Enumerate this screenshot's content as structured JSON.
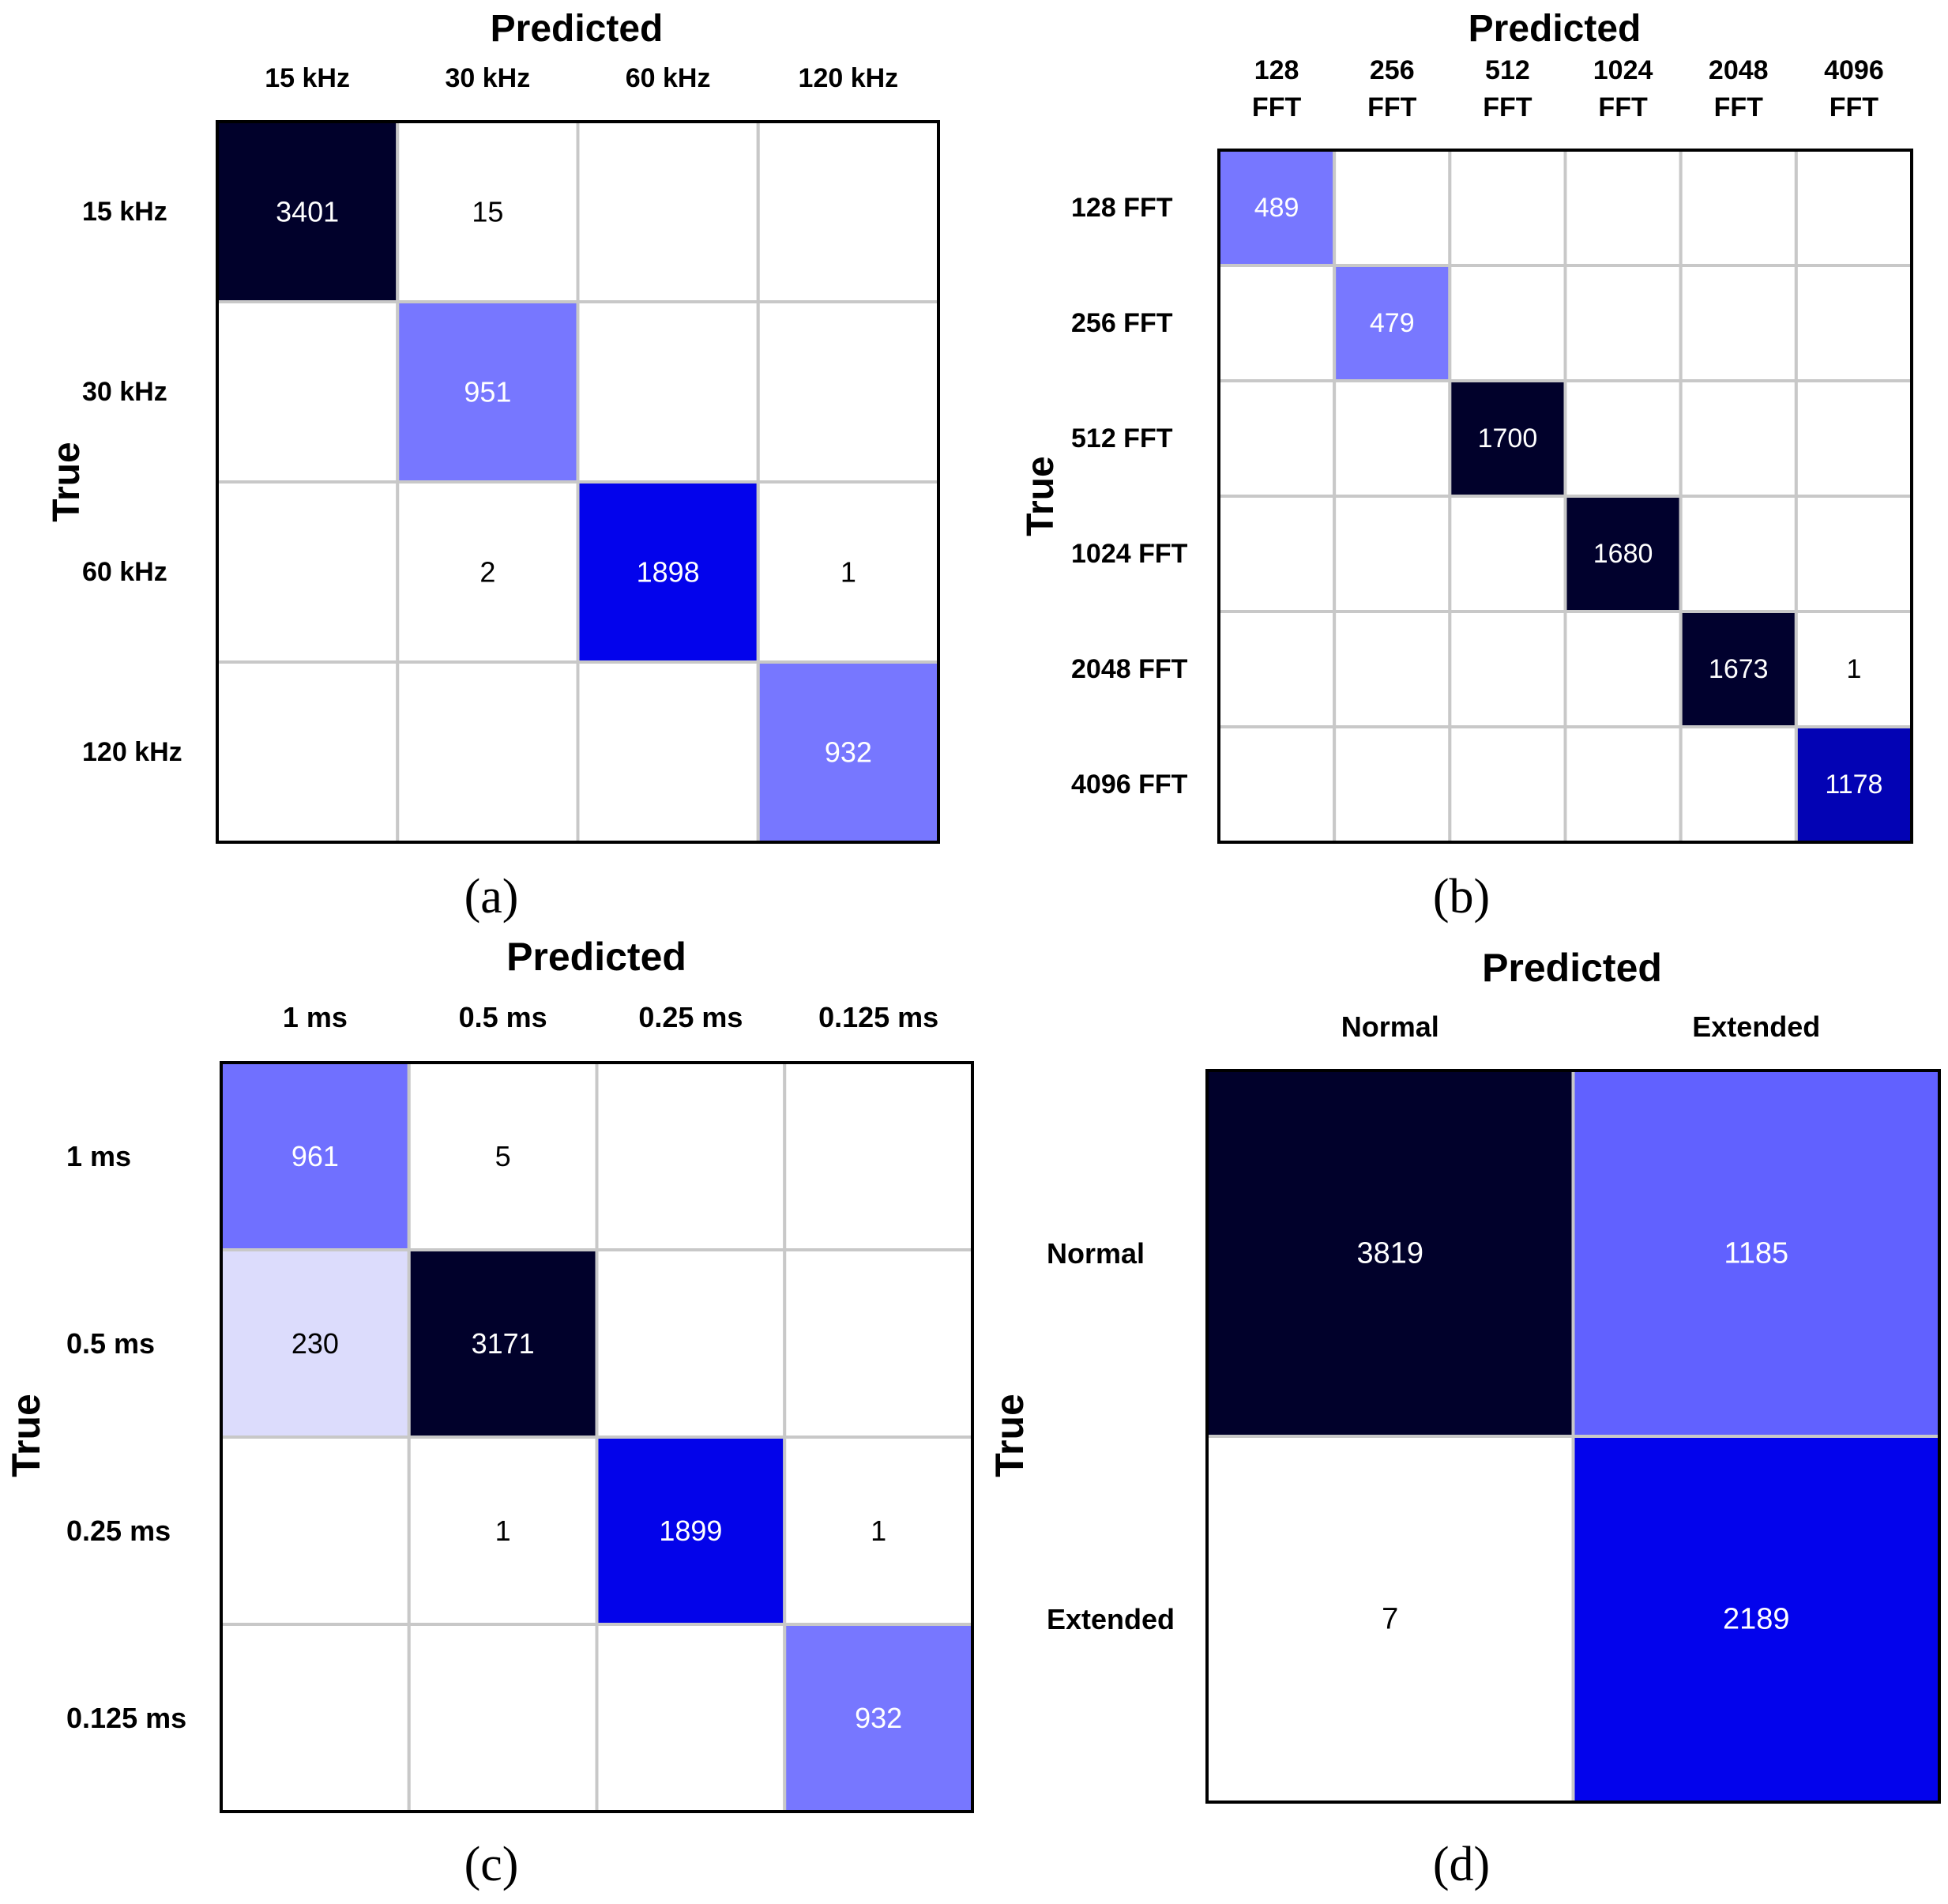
{
  "chart_data": [
    {
      "type": "heatmap",
      "panel": "a",
      "caption": "(a)",
      "xlabel": "Predicted",
      "ylabel": "True",
      "col_labels": [
        [
          "15 kHz"
        ],
        [
          "30 kHz"
        ],
        [
          "60 kHz"
        ],
        [
          "120 kHz"
        ]
      ],
      "row_labels": [
        "15 kHz",
        "30 kHz",
        "60 kHz",
        "120 kHz"
      ],
      "values": [
        [
          3401,
          15,
          null,
          null
        ],
        [
          null,
          951,
          null,
          null
        ],
        [
          null,
          2,
          1898,
          1
        ],
        [
          null,
          null,
          null,
          932
        ]
      ],
      "colors": [
        [
          "#01012b",
          "#ffffff",
          "#ffffff",
          "#ffffff"
        ],
        [
          "#ffffff",
          "#7777ff",
          "#ffffff",
          "#ffffff"
        ],
        [
          "#ffffff",
          "#ffffff",
          "#0303ec",
          "#ffffff"
        ],
        [
          "#ffffff",
          "#ffffff",
          "#ffffff",
          "#7777ff"
        ]
      ]
    },
    {
      "type": "heatmap",
      "panel": "b",
      "caption": "(b)",
      "xlabel": "Predicted",
      "ylabel": "True",
      "col_labels": [
        [
          "128",
          "FFT"
        ],
        [
          "256",
          "FFT"
        ],
        [
          "512",
          "FFT"
        ],
        [
          "1024",
          "FFT"
        ],
        [
          "2048",
          "FFT"
        ],
        [
          "4096",
          "FFT"
        ]
      ],
      "row_labels": [
        "128  FFT",
        "256  FFT",
        "512  FFT",
        "1024 FFT",
        "2048 FFT",
        "4096 FFT"
      ],
      "values": [
        [
          489,
          null,
          null,
          null,
          null,
          null
        ],
        [
          null,
          479,
          null,
          null,
          null,
          null
        ],
        [
          null,
          null,
          1700,
          null,
          null,
          null
        ],
        [
          null,
          null,
          null,
          1680,
          null,
          null
        ],
        [
          null,
          null,
          null,
          null,
          1673,
          1
        ],
        [
          null,
          null,
          null,
          null,
          null,
          1178
        ]
      ],
      "colors": [
        [
          "#7777ff",
          "#ffffff",
          "#ffffff",
          "#ffffff",
          "#ffffff",
          "#ffffff"
        ],
        [
          "#ffffff",
          "#7878ff",
          "#ffffff",
          "#ffffff",
          "#ffffff",
          "#ffffff"
        ],
        [
          "#ffffff",
          "#ffffff",
          "#01012b",
          "#ffffff",
          "#ffffff",
          "#ffffff"
        ],
        [
          "#ffffff",
          "#ffffff",
          "#ffffff",
          "#01012d",
          "#ffffff",
          "#ffffff"
        ],
        [
          "#ffffff",
          "#ffffff",
          "#ffffff",
          "#ffffff",
          "#01012e",
          "#ffffff"
        ],
        [
          "#ffffff",
          "#ffffff",
          "#ffffff",
          "#ffffff",
          "#ffffff",
          "#0303b4"
        ]
      ]
    },
    {
      "type": "heatmap",
      "panel": "c",
      "caption": "(c)",
      "xlabel": "Predicted",
      "ylabel": "True",
      "col_labels": [
        [
          "1 ms"
        ],
        [
          "0.5 ms"
        ],
        [
          "0.25 ms"
        ],
        [
          "0.125 ms"
        ]
      ],
      "row_labels": [
        "1 ms",
        "0.5 ms",
        "0.25 ms",
        "0.125 ms"
      ],
      "values": [
        [
          961,
          5,
          null,
          null
        ],
        [
          230,
          3171,
          null,
          null
        ],
        [
          null,
          1,
          1899,
          1
        ],
        [
          null,
          null,
          null,
          932
        ]
      ],
      "colors": [
        [
          "#7070ff",
          "#ffffff",
          "#ffffff",
          "#ffffff"
        ],
        [
          "#dcdcfc",
          "#01012b",
          "#ffffff",
          "#ffffff"
        ],
        [
          "#ffffff",
          "#ffffff",
          "#0303ea",
          "#ffffff"
        ],
        [
          "#ffffff",
          "#ffffff",
          "#ffffff",
          "#7777ff"
        ]
      ]
    },
    {
      "type": "heatmap",
      "panel": "d",
      "caption": "(d)",
      "xlabel": "Predicted",
      "ylabel": "True",
      "col_labels": [
        [
          "Normal"
        ],
        [
          "Extended"
        ]
      ],
      "row_labels": [
        "Normal",
        "Extended"
      ],
      "values": [
        [
          3819,
          1185
        ],
        [
          7,
          2189
        ]
      ],
      "colors": [
        [
          "#01012b",
          "#6161ff"
        ],
        [
          "#ffffff",
          "#0303ec"
        ]
      ]
    }
  ]
}
